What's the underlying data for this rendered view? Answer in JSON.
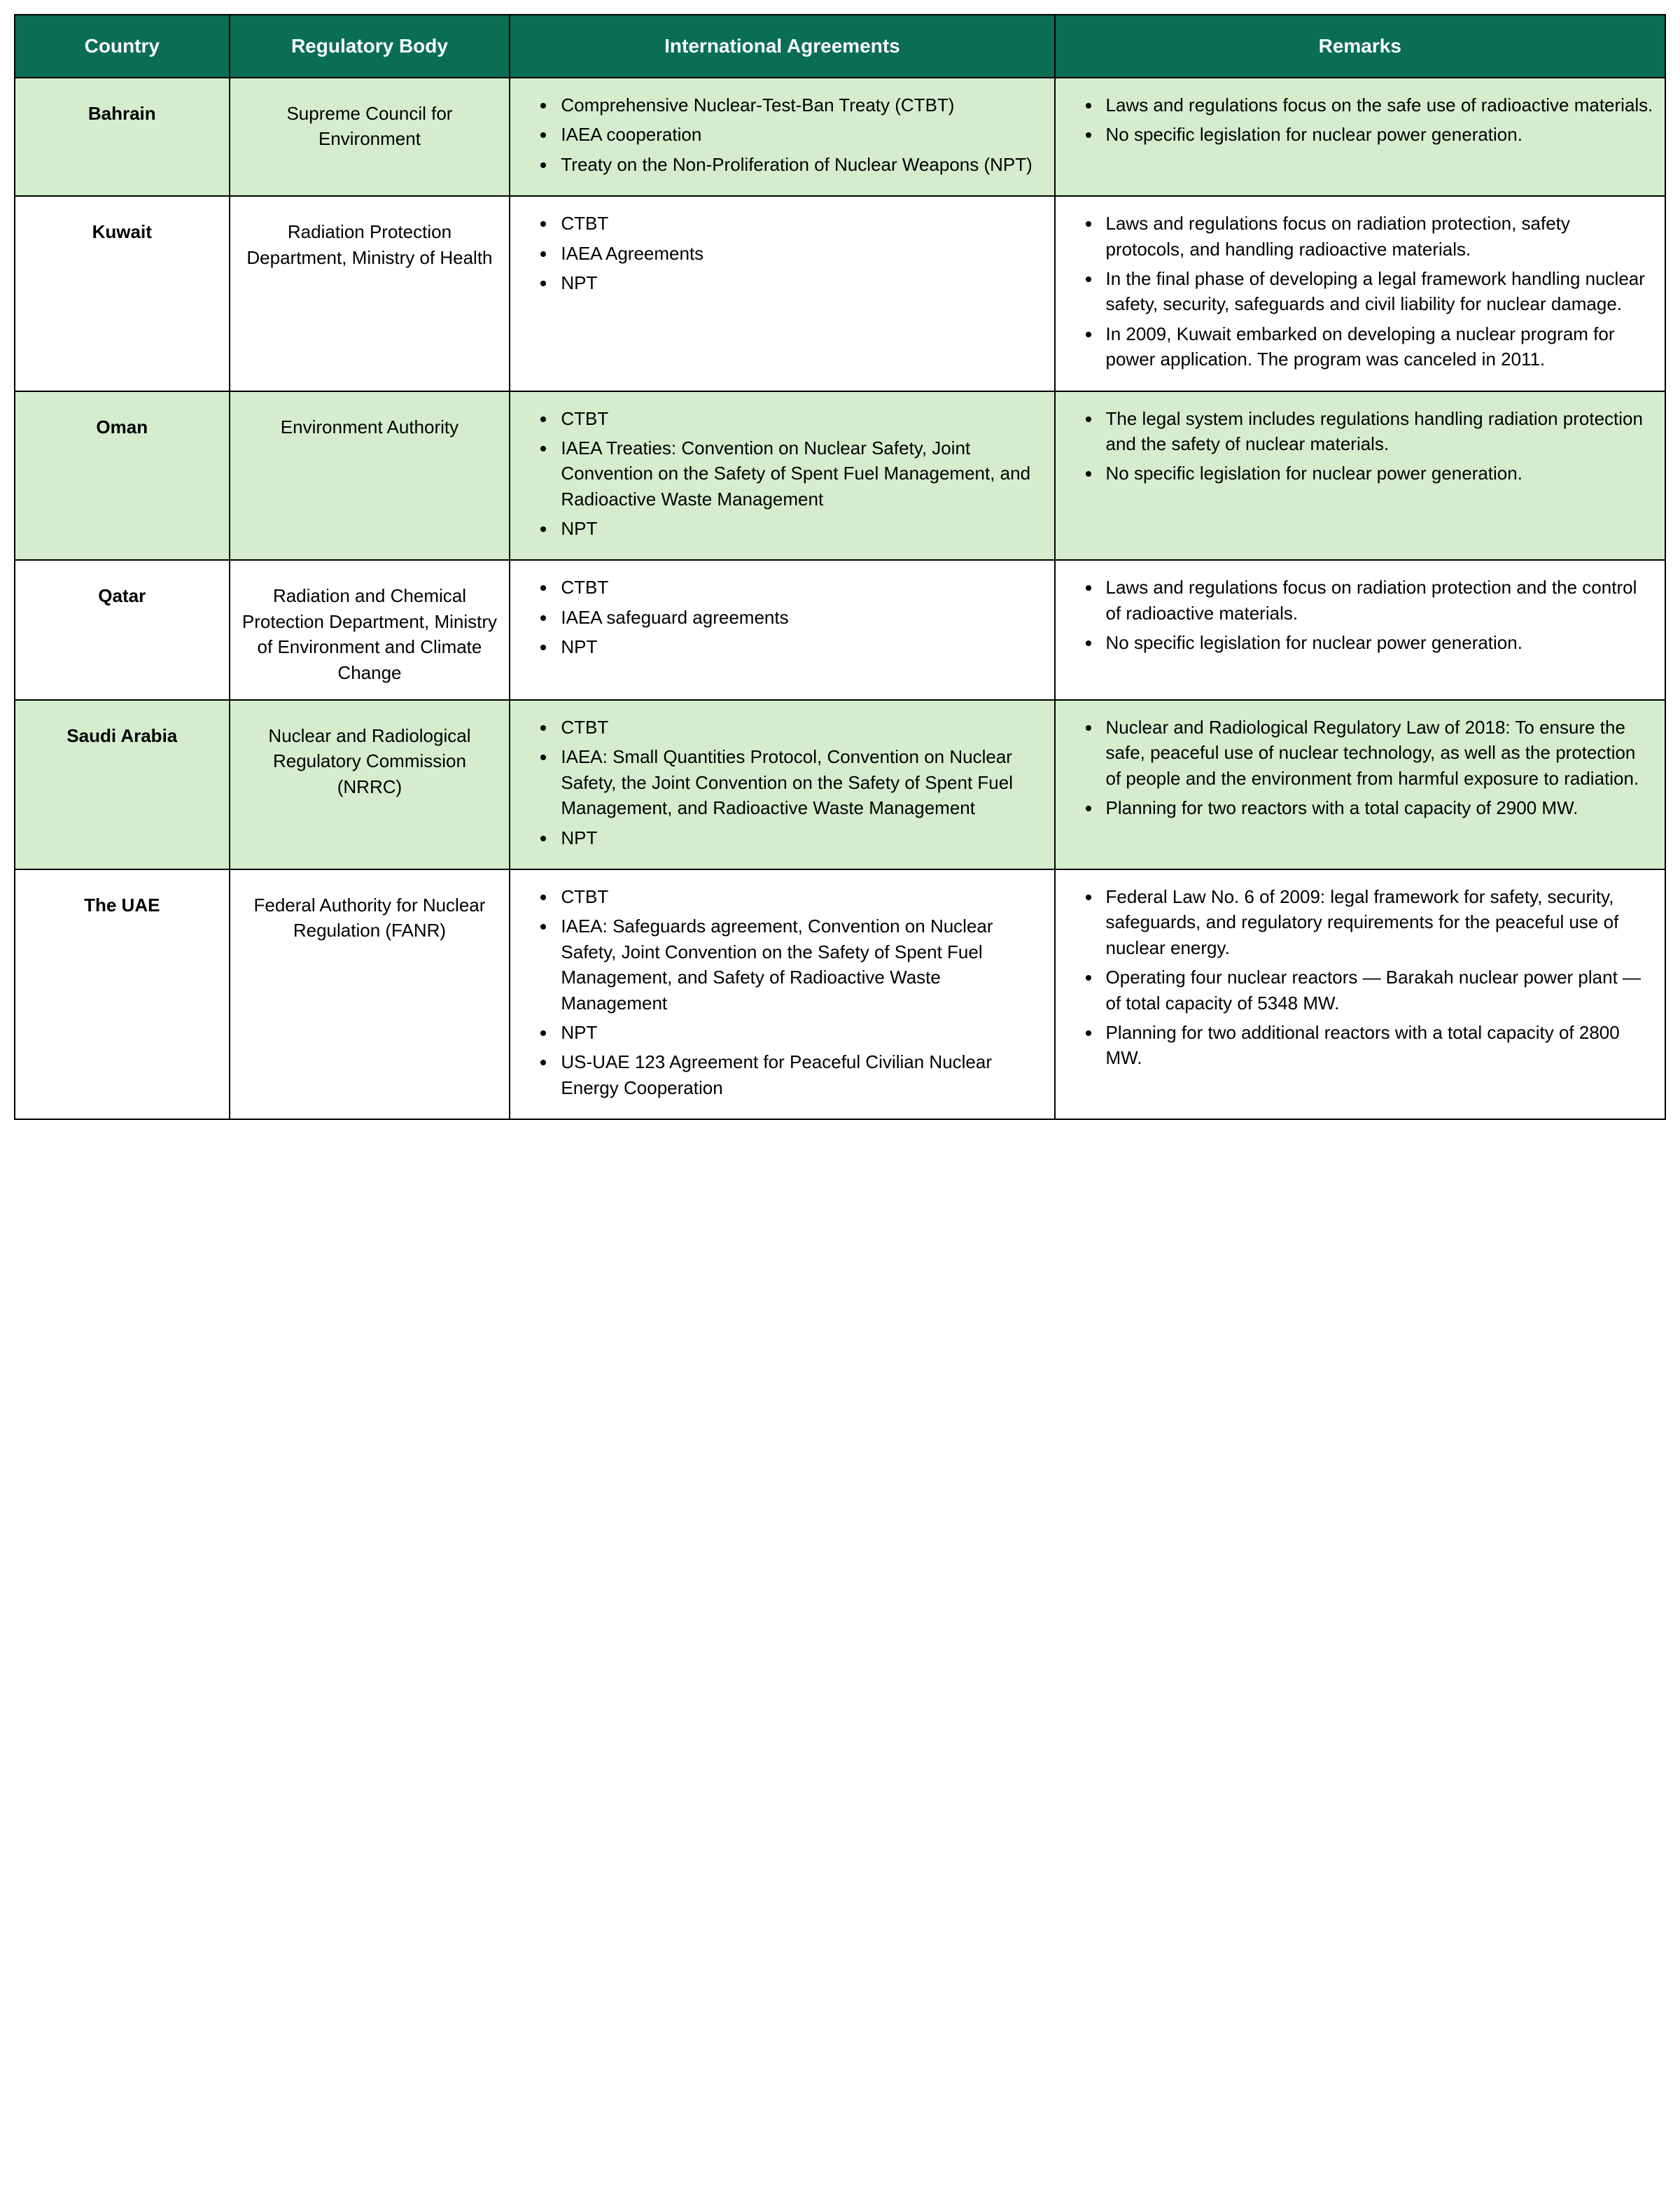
{
  "table": {
    "headers": {
      "country": "Country",
      "body": "Regulatory Body",
      "agreements": "International Agreements",
      "remarks": "Remarks"
    },
    "colors": {
      "header_bg": "#0a6e52",
      "header_text": "#ffffff",
      "alt_row_bg": "#d5edce",
      "normal_row_bg": "#ffffff",
      "border": "#000000"
    },
    "column_widths": {
      "country": "13%",
      "body": "17%",
      "agreements": "33%",
      "remarks": "37%"
    },
    "font_sizes": {
      "header": 28,
      "body": 26
    },
    "rows": [
      {
        "alt": true,
        "country": "Bahrain",
        "body": "Supreme Council for Environment",
        "agreements": [
          "Comprehensive Nuclear-Test-Ban Treaty (CTBT)",
          "IAEA cooperation",
          "Treaty on the Non-Proliferation of Nuclear Weapons (NPT)"
        ],
        "remarks": [
          "Laws and regulations focus on the safe use of radioactive materials.",
          "No specific legislation for nuclear power generation."
        ]
      },
      {
        "alt": false,
        "country": "Kuwait",
        "body": "Radiation Protection Department, Ministry of Health",
        "agreements": [
          "CTBT",
          "IAEA Agreements",
          "NPT"
        ],
        "remarks": [
          "Laws and regulations focus on radiation protection, safety protocols, and handling radioactive materials.",
          "In the final phase of developing a legal framework handling nuclear safety, security, safeguards and civil liability for nuclear damage.",
          "In 2009, Kuwait embarked on developing a nuclear program for power application. The program was canceled in 2011."
        ]
      },
      {
        "alt": true,
        "country": "Oman",
        "body": "Environment Authority",
        "agreements": [
          "CTBT",
          "IAEA Treaties: Convention on Nuclear Safety, Joint Convention on the Safety of Spent Fuel Management, and Radioactive Waste Management",
          "NPT"
        ],
        "remarks": [
          "The legal system includes regulations handling radiation protection and the safety of nuclear materials.",
          "No specific legislation for nuclear power generation."
        ]
      },
      {
        "alt": false,
        "country": "Qatar",
        "body": "Radiation and Chemical Protection Department, Ministry of Environment and Climate Change",
        "agreements": [
          "CTBT",
          "IAEA safeguard agreements",
          "NPT"
        ],
        "remarks": [
          "Laws and regulations focus on radiation protection and the control of radioactive materials.",
          "No specific legislation for nuclear power generation."
        ]
      },
      {
        "alt": true,
        "country": "Saudi Arabia",
        "body": "Nuclear and Radiological Regulatory Commission (NRRC)",
        "agreements": [
          "CTBT",
          "IAEA: Small Quantities Protocol, Convention on Nuclear Safety, the Joint Convention on the Safety of Spent Fuel Management, and Radioactive Waste Management",
          "NPT"
        ],
        "remarks": [
          "Nuclear and Radiological Regulatory Law of 2018: To ensure the safe, peaceful use of nuclear technology, as well as the protection of people and the environment from harmful exposure to radiation.",
          "Planning for two reactors with a total capacity of 2900 MW."
        ]
      },
      {
        "alt": false,
        "country": "The UAE",
        "body": "Federal Authority for Nuclear Regulation (FANR)",
        "agreements": [
          "CTBT",
          "IAEA: Safeguards agreement, Convention on Nuclear Safety, Joint Convention on the Safety of Spent Fuel Management, and Safety of Radioactive Waste Management",
          "NPT",
          "US-UAE 123 Agreement for Peaceful Civilian Nuclear Energy Cooperation"
        ],
        "remarks": [
          "Federal Law No. 6 of 2009: legal framework for safety, security, safeguards, and regulatory requirements for the peaceful use of nuclear energy.",
          "Operating four nuclear reactors — Barakah nuclear power plant — of total capacity of 5348 MW.",
          "Planning for two additional reactors with a total capacity of 2800 MW."
        ]
      }
    ]
  }
}
